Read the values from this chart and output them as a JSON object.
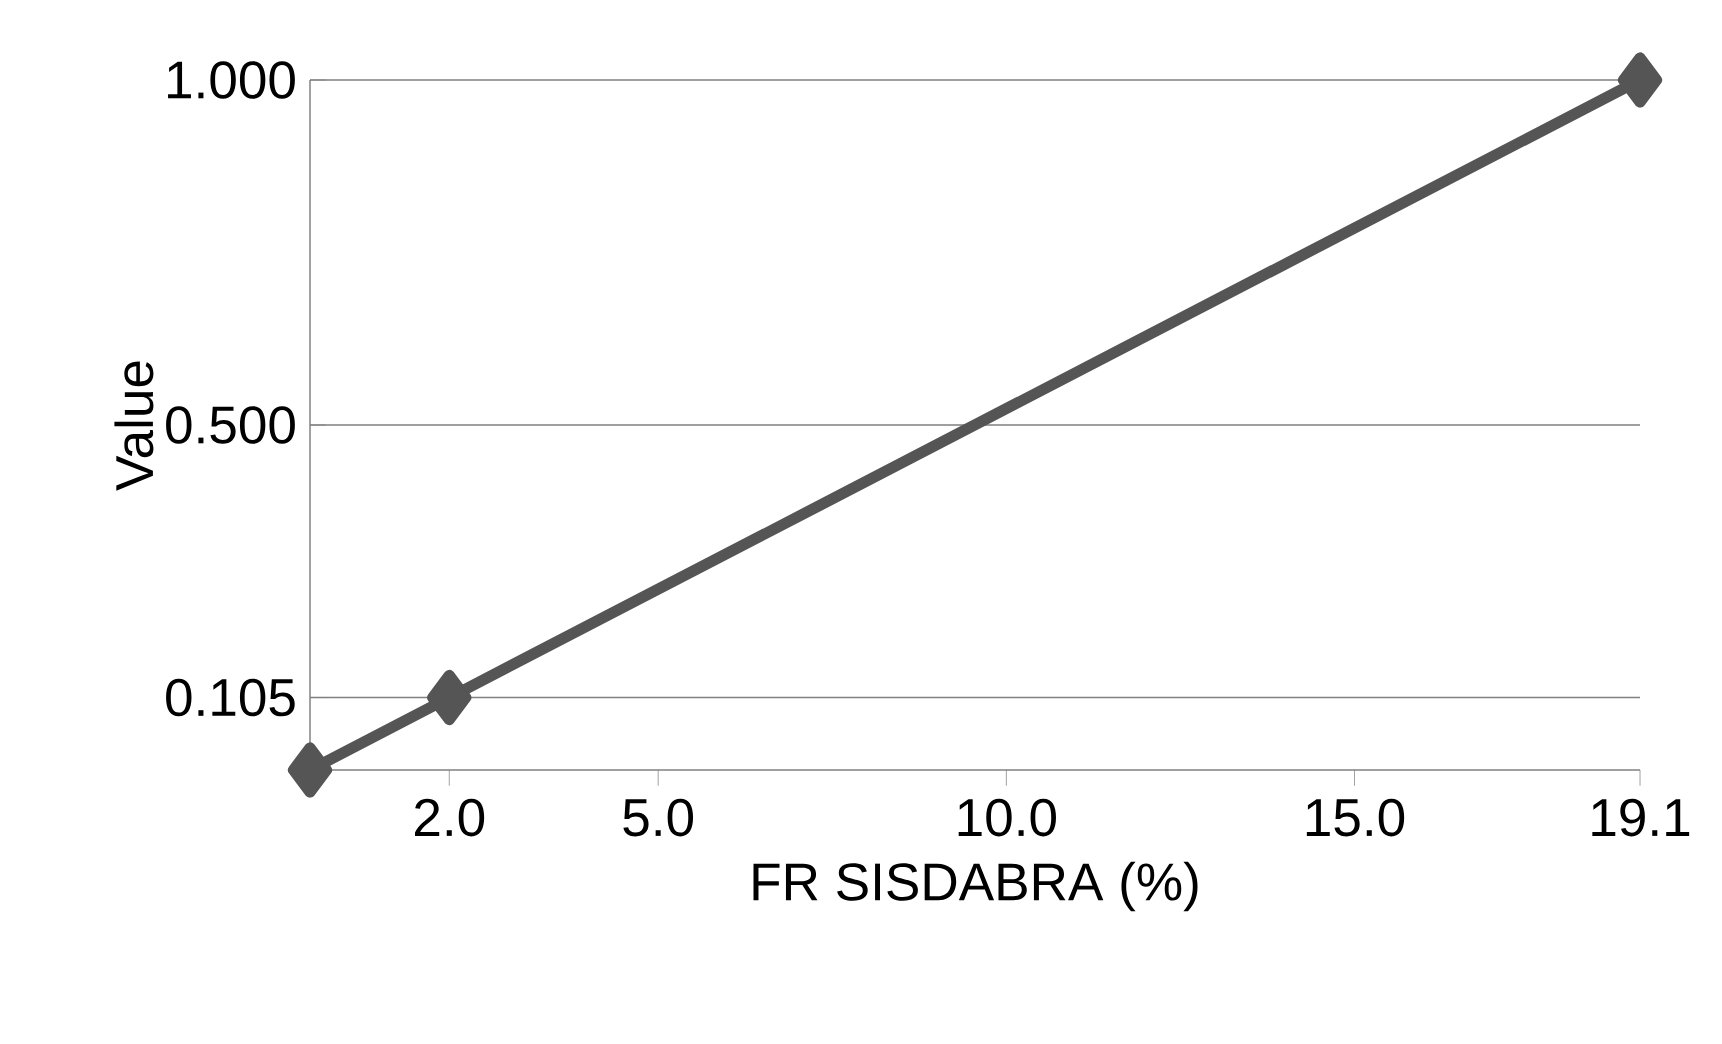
{
  "chart_data": {
    "type": "line",
    "xlabel": "FR SISDABRA (%)",
    "ylabel": "Value",
    "x": [
      0,
      2.0,
      19.1
    ],
    "series": [
      {
        "color": "#555555",
        "values": [
          0,
          0.105,
          1.0
        ]
      }
    ],
    "xlim": [
      0,
      19.1
    ],
    "ylim": [
      0,
      1.0
    ],
    "xticks": [
      {
        "value": 2.0,
        "label": "2.0"
      },
      {
        "value": 5.0,
        "label": "5.0"
      },
      {
        "value": 10.0,
        "label": "10.0"
      },
      {
        "value": 15.0,
        "label": "15.0"
      },
      19.1
    ],
    "yticks": [
      0.105,
      {
        "value": 0.5,
        "label": "0.500"
      },
      {
        "value": 1.0,
        "label": "1.000"
      }
    ],
    "grid": "y",
    "marker": "diamond",
    "line_style": "solid"
  }
}
